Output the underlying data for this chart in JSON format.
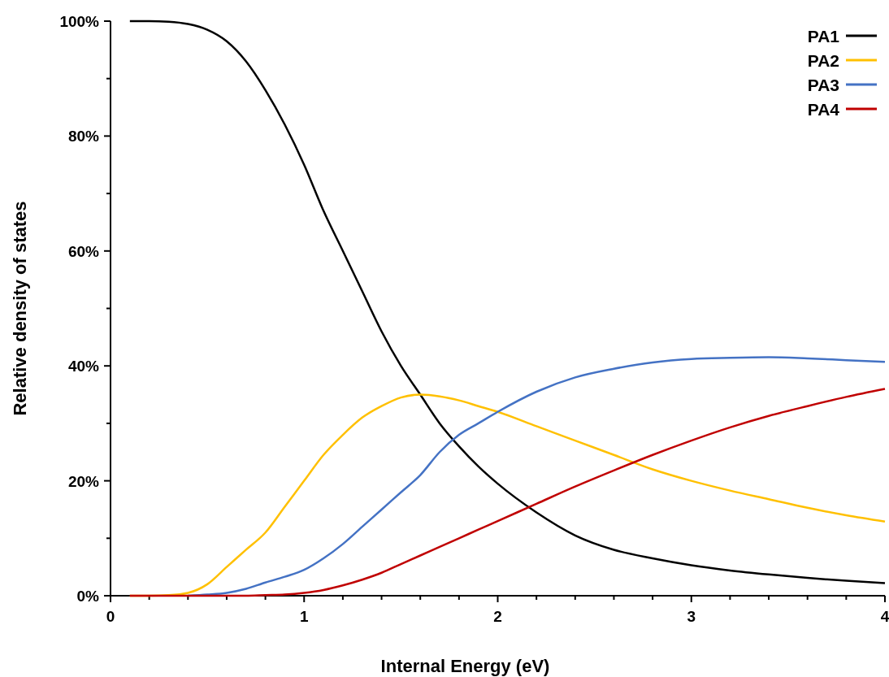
{
  "chart_data": {
    "type": "line",
    "xlabel": "Internal Energy (eV)",
    "ylabel": "Relative density of states",
    "x": [
      0.1,
      0.2,
      0.3,
      0.4,
      0.5,
      0.6,
      0.7,
      0.8,
      0.9,
      1.0,
      1.1,
      1.2,
      1.3,
      1.4,
      1.5,
      1.6,
      1.7,
      1.8,
      1.9,
      2.0,
      2.2,
      2.4,
      2.6,
      2.8,
      3.0,
      3.2,
      3.4,
      3.6,
      3.8,
      4.0
    ],
    "series": [
      {
        "name": "PA1",
        "color": "#000000",
        "values": [
          100,
          100,
          99.9,
          99.5,
          98.5,
          96.5,
          93,
          88,
          82,
          75,
          67,
          60,
          53,
          46,
          40,
          35,
          30,
          26,
          22.5,
          19.5,
          14.5,
          10.5,
          8,
          6.5,
          5.3,
          4.4,
          3.7,
          3.1,
          2.6,
          2.2
        ]
      },
      {
        "name": "PA2",
        "color": "#ffc000",
        "values": [
          0,
          0,
          0.1,
          0.5,
          2,
          5,
          8,
          11,
          15.5,
          20,
          24.5,
          28,
          31,
          33,
          34.5,
          35,
          34.7,
          34,
          33,
          32,
          29.5,
          27,
          24.5,
          22,
          20,
          18.3,
          16.8,
          15.3,
          14,
          12.9
        ]
      },
      {
        "name": "PA3",
        "color": "#4472c4",
        "values": [
          null,
          null,
          null,
          0,
          0.2,
          0.5,
          1.2,
          2.3,
          3.3,
          4.5,
          6.5,
          9,
          12,
          15,
          18,
          21,
          25,
          28,
          30,
          32,
          35.5,
          38,
          39.5,
          40.6,
          41.2,
          41.4,
          41.5,
          41.3,
          41,
          40.7
        ]
      },
      {
        "name": "PA4",
        "color": "#c00000",
        "values": [
          0,
          0,
          0,
          0,
          0,
          0,
          0,
          0.1,
          0.2,
          0.5,
          1,
          1.8,
          2.8,
          4,
          5.5,
          7,
          8.5,
          10,
          11.5,
          13,
          16,
          19,
          21.8,
          24.5,
          27,
          29.3,
          31.3,
          33,
          34.6,
          36
        ]
      }
    ],
    "xlim": [
      0,
      4
    ],
    "xticks": [
      0,
      {
        "value": 0.2,
        "label": null
      },
      {
        "value": 0.4,
        "label": null
      },
      {
        "value": 0.6,
        "label": null
      },
      {
        "value": 0.8,
        "label": null
      },
      1,
      {
        "value": 1.2,
        "label": null
      },
      {
        "value": 1.4,
        "label": null
      },
      {
        "value": 1.6,
        "label": null
      },
      {
        "value": 1.8,
        "label": null
      },
      2,
      {
        "value": 2.2,
        "label": null
      },
      {
        "value": 2.4,
        "label": null
      },
      {
        "value": 2.6,
        "label": null
      },
      {
        "value": 2.8,
        "label": null
      },
      3,
      {
        "value": 3.2,
        "label": null
      },
      {
        "value": 3.4,
        "label": null
      },
      {
        "value": 3.6,
        "label": null
      },
      {
        "value": 3.8,
        "label": null
      },
      4
    ],
    "ylim": [
      0,
      100
    ],
    "yticks": [
      {
        "value": 0,
        "label": "0%"
      },
      {
        "value": 10,
        "label": null
      },
      {
        "value": 20,
        "label": "20%"
      },
      {
        "value": 30,
        "label": null
      },
      {
        "value": 40,
        "label": "40%"
      },
      {
        "value": 50,
        "label": null
      },
      {
        "value": 60,
        "label": "60%"
      },
      {
        "value": 70,
        "label": null
      },
      {
        "value": 80,
        "label": "80%"
      },
      {
        "value": 90,
        "label": null
      },
      {
        "value": 100,
        "label": "100%"
      }
    ],
    "grid": false,
    "legend": "top right",
    "marker": "none",
    "line_style": "solid"
  }
}
